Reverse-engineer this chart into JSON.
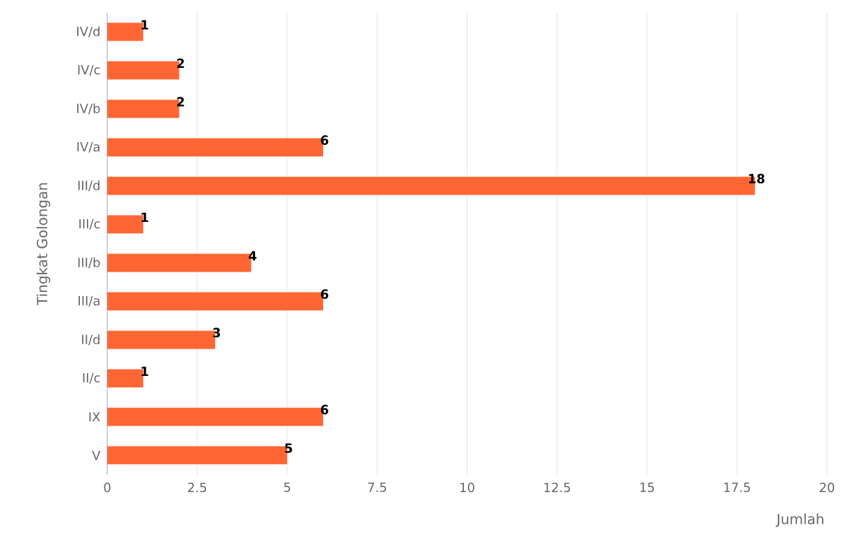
{
  "chart_data": {
    "type": "bar",
    "orientation": "horizontal",
    "xlabel": "Jumlah",
    "ylabel": "Tingkat Golongan",
    "categories": [
      "IV/d",
      "IV/c",
      "IV/b",
      "IV/a",
      "III/d",
      "III/c",
      "III/b",
      "III/a",
      "II/d",
      "II/c",
      "IX",
      "V"
    ],
    "values": [
      1,
      2,
      2,
      6,
      18,
      1,
      4,
      6,
      3,
      1,
      6,
      5
    ],
    "color": "#ff6633",
    "xlim": [
      0,
      20
    ],
    "xticks": [
      0,
      2.5,
      5,
      7.5,
      10,
      12.5,
      15,
      17.5,
      20
    ],
    "grid": "x",
    "data_labels": true
  }
}
